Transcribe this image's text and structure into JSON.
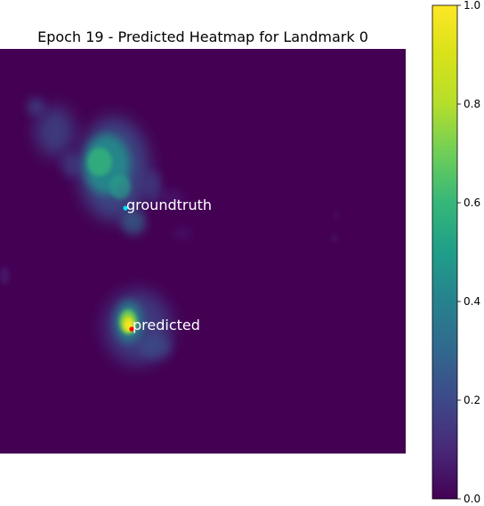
{
  "chart_data": {
    "type": "heatmap",
    "title": "Epoch 19 - Predicted Heatmap for Landmark 0",
    "colormap": "viridis",
    "axes_visible": false,
    "colorbar": {
      "min": 0.0,
      "max": 1.0,
      "ticks": [
        0.0,
        0.2,
        0.4,
        0.6,
        0.8,
        1.0
      ],
      "tick_labels": [
        "0.0",
        "0.2",
        "0.4",
        "0.6",
        "0.8",
        "1.0"
      ]
    },
    "points": [
      {
        "label": "groundtruth",
        "color": "#00e5ff"
      },
      {
        "label": "predicted",
        "color": "#ff0000"
      }
    ]
  }
}
